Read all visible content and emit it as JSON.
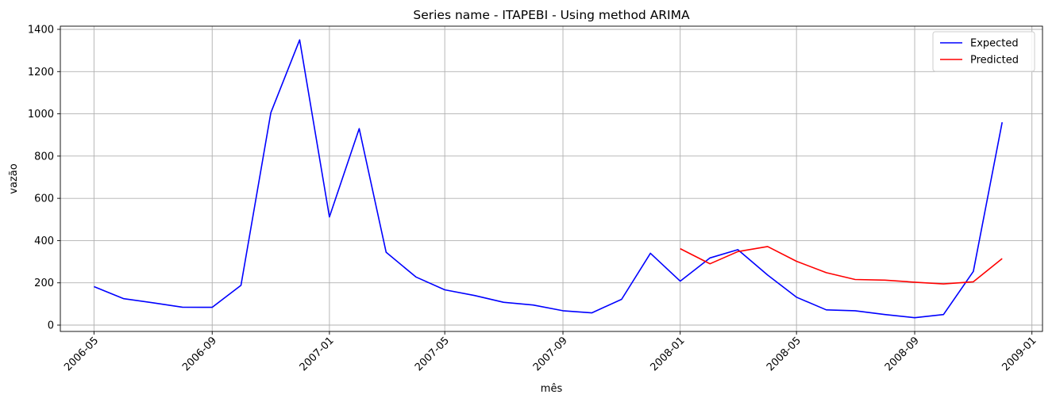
{
  "chart_data": {
    "type": "line",
    "title": "Series name - ITAPEBI - Using method ARIMA",
    "xlabel": "mês",
    "ylabel": "vazão",
    "ylim": [
      -30,
      1415
    ],
    "xlim": [
      "2006-03-27",
      "2009-01-12"
    ],
    "grid": true,
    "legend_position": "top-right",
    "x_ticks": [
      "2006-05",
      "2006-09",
      "2007-01",
      "2007-05",
      "2007-09",
      "2008-01",
      "2008-05",
      "2008-09",
      "2009-01"
    ],
    "y_ticks": [
      0,
      200,
      400,
      600,
      800,
      1000,
      1200,
      1400
    ],
    "series": [
      {
        "name": "Expected",
        "color": "#0000ff",
        "x": [
          "2006-05-01",
          "2006-06-01",
          "2006-07-01",
          "2006-08-01",
          "2006-09-01",
          "2006-10-01",
          "2006-11-01",
          "2006-12-01",
          "2007-01-01",
          "2007-02-01",
          "2007-03-01",
          "2007-04-01",
          "2007-05-01",
          "2007-06-01",
          "2007-07-01",
          "2007-08-01",
          "2007-09-01",
          "2007-10-01",
          "2007-11-01",
          "2007-12-01",
          "2008-01-01",
          "2008-02-01",
          "2008-03-01",
          "2008-04-01",
          "2008-05-01",
          "2008-06-01",
          "2008-07-01",
          "2008-08-01",
          "2008-09-01",
          "2008-10-01",
          "2008-11-01",
          "2008-12-01"
        ],
        "values": [
          182,
          125,
          106,
          85,
          84,
          188,
          1005,
          1350,
          512,
          930,
          345,
          228,
          167,
          140,
          108,
          95,
          68,
          58,
          122,
          340,
          208,
          318,
          357,
          237,
          132,
          72,
          68,
          50,
          35,
          50,
          254,
          960
        ]
      },
      {
        "name": "Predicted",
        "color": "#ff0000",
        "x": [
          "2008-01-01",
          "2008-02-01",
          "2008-03-01",
          "2008-04-01",
          "2008-05-01",
          "2008-06-01",
          "2008-07-01",
          "2008-08-01",
          "2008-09-01",
          "2008-10-01",
          "2008-11-01",
          "2008-12-01"
        ],
        "values": [
          362,
          290,
          348,
          372,
          302,
          248,
          216,
          213,
          203,
          195,
          205,
          315
        ]
      }
    ]
  }
}
